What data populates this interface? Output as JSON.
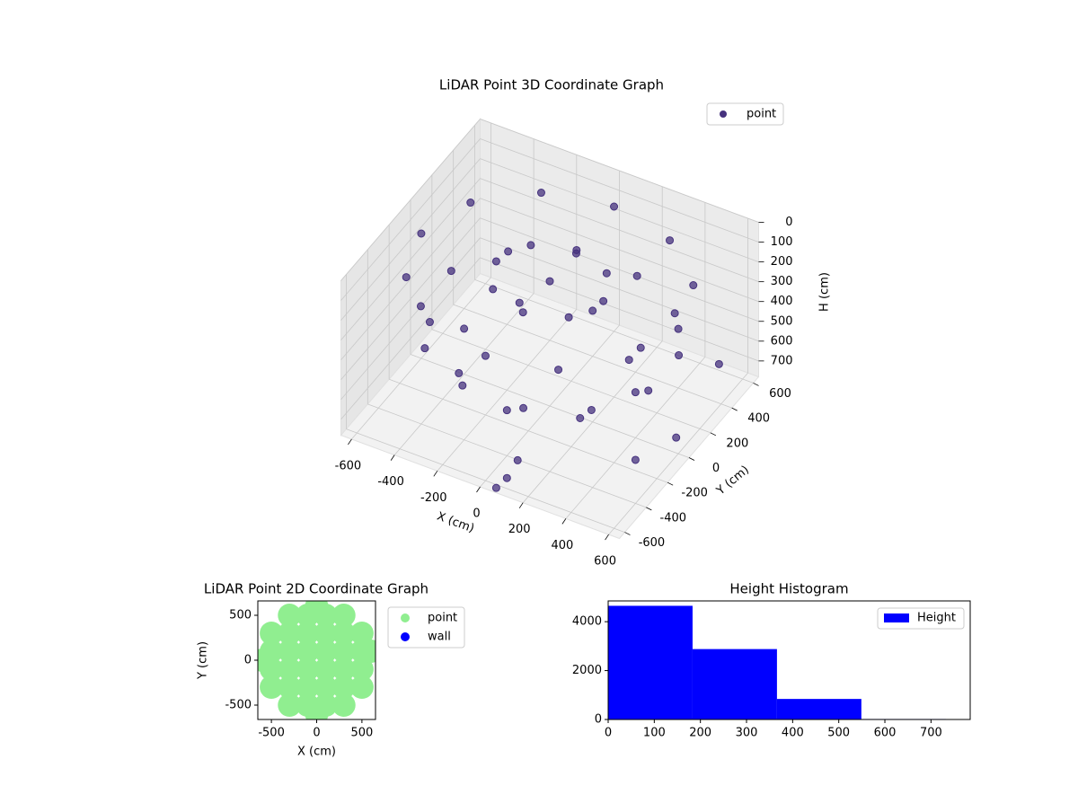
{
  "chart_data": [
    {
      "type": "scatter3d",
      "title": "LiDAR Point 3D Coordinate Graph",
      "xlabel": "X (cm)",
      "ylabel": "Y (cm)",
      "zlabel": "H (cm)",
      "xlim": [
        -650,
        650
      ],
      "ylim": [
        -650,
        650
      ],
      "zlim": [
        780,
        0
      ],
      "xticks": [
        -600,
        -400,
        -200,
        0,
        200,
        400,
        600
      ],
      "yticks": [
        -600,
        -400,
        -200,
        0,
        200,
        400,
        600
      ],
      "zticks": [
        0,
        100,
        200,
        300,
        400,
        500,
        600,
        700
      ],
      "grid": true,
      "legend": "upper right",
      "series": [
        {
          "name": "point",
          "color": "#46327e",
          "x": [
            600,
            520,
            300,
            0,
            -300,
            -520,
            -600,
            -520,
            -300,
            0,
            300,
            520,
            531,
            389,
            142,
            -142,
            -389,
            -531,
            -531,
            -389,
            -142,
            142,
            389,
            531,
            250,
            177,
            0,
            -177,
            -250,
            -177,
            0,
            177,
            0,
            400,
            283,
            0,
            -283,
            -400,
            -283,
            0,
            283,
            640,
            640,
            600,
            100,
            80,
            60
          ],
          "y": [
            0,
            300,
            520,
            600,
            520,
            300,
            0,
            -300,
            -520,
            -600,
            -520,
            -300,
            142,
            389,
            531,
            531,
            389,
            142,
            -142,
            -389,
            -531,
            -531,
            -389,
            -142,
            0,
            177,
            250,
            177,
            0,
            -177,
            -250,
            -177,
            0,
            0,
            283,
            400,
            283,
            0,
            -283,
            -400,
            -283,
            300,
            -100,
            -400,
            -500,
            -560,
            -620
          ],
          "z": [
            150,
            150,
            150,
            150,
            150,
            150,
            150,
            150,
            150,
            150,
            150,
            150,
            400,
            400,
            400,
            400,
            400,
            400,
            400,
            400,
            400,
            400,
            400,
            400,
            150,
            150,
            150,
            150,
            150,
            150,
            150,
            150,
            150,
            550,
            550,
            550,
            550,
            550,
            550,
            550,
            550,
            500,
            620,
            560,
            700,
            760,
            780
          ]
        }
      ]
    },
    {
      "type": "scatter",
      "title": "LiDAR Point 2D Coordinate Graph",
      "xlabel": "X (cm)",
      "ylabel": "Y (cm)",
      "xlim": [
        -650,
        650
      ],
      "ylim": [
        -660,
        660
      ],
      "xticks": [
        -500,
        0,
        500
      ],
      "yticks": [
        -500,
        0,
        500
      ],
      "legend": "outside upper right",
      "series": [
        {
          "name": "point",
          "color": "#90ee90",
          "x": [
            -300,
            -100,
            100,
            300,
            -500,
            -300,
            -100,
            100,
            300,
            500,
            -500,
            -300,
            -100,
            100,
            300,
            500,
            -500,
            -300,
            -100,
            100,
            300,
            500,
            -500,
            -300,
            -100,
            100,
            300,
            500,
            -300,
            -100,
            100,
            300,
            -600,
            0,
            0,
            600
          ],
          "y": [
            -500,
            -500,
            -500,
            -500,
            -300,
            -300,
            -300,
            -300,
            -300,
            -300,
            -100,
            -100,
            -100,
            -100,
            -100,
            -100,
            100,
            100,
            100,
            100,
            100,
            100,
            300,
            300,
            300,
            300,
            300,
            300,
            500,
            500,
            500,
            500,
            0,
            600,
            -600,
            100
          ]
        },
        {
          "name": "wall",
          "color": "#0000ff",
          "x": [],
          "y": []
        }
      ]
    },
    {
      "type": "histogram",
      "title": "Height Histogram",
      "bins": [
        0,
        183,
        366,
        549,
        732,
        785
      ],
      "xlim": [
        0,
        785
      ],
      "ylim": [
        0,
        4850
      ],
      "xticks": [
        0,
        100,
        200,
        300,
        400,
        500,
        600,
        700
      ],
      "yticks": [
        0,
        2000,
        4000
      ],
      "legend": "upper right",
      "series": [
        {
          "name": "Height",
          "color": "#0000ff",
          "values": [
            4650,
            2880,
            840,
            20,
            15
          ]
        }
      ]
    }
  ]
}
